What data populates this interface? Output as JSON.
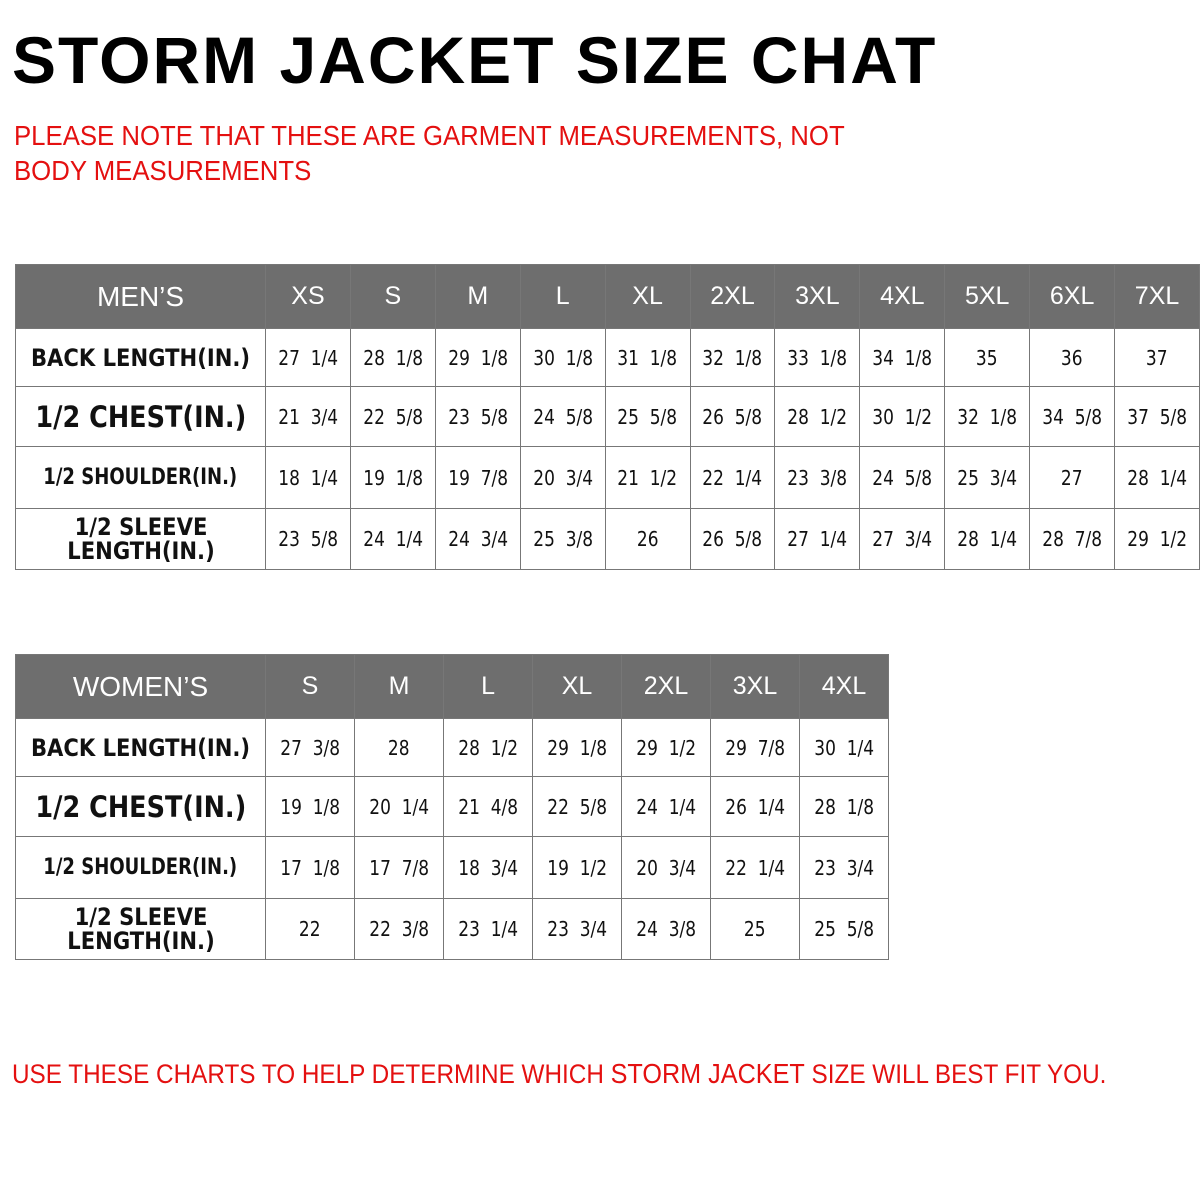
{
  "title": "STORM JACKET SIZE CHAT",
  "note": "PLEASE NOTE THAT THESE ARE GARMENT MEASUREMENTS, NOT BODY MEASUREMENTS",
  "footer": {
    "before": "USE THESE CHARTS TO HELP DETERMINE WHICH ",
    "brand": "STORM JACKET",
    "after": "  SIZE WILL BEST FIT YOU."
  },
  "colors": {
    "header_bg": "#6e6e6e",
    "accent_red": "#e41010"
  },
  "mens": {
    "corner": "MEN’S",
    "sizes": [
      "XS",
      "S",
      "M",
      "L",
      "XL",
      "2XL",
      "3XL",
      "4XL",
      "5XL",
      "6XL",
      "7XL"
    ],
    "rows": [
      {
        "label": "BACK LENGTH(IN.)",
        "values": [
          "27  1/4",
          "28  1/8",
          "29  1/8",
          "30  1/8",
          "31  1/8",
          "32  1/8",
          "33  1/8",
          "34  1/8",
          "35",
          "36",
          "37"
        ]
      },
      {
        "label": "1/2  CHEST(IN.)",
        "values": [
          "21  3/4",
          "22  5/8",
          "23  5/8",
          "24  5/8",
          "25  5/8",
          "26  5/8",
          "28  1/2",
          "30  1/2",
          "32  1/8",
          "34  5/8",
          "37  5/8"
        ]
      },
      {
        "label": "1/2  SHOULDER(IN.)",
        "values": [
          "18  1/4",
          "19  1/8",
          "19  7/8",
          "20  3/4",
          "21  1/2",
          "22  1/4",
          "23  3/8",
          "24  5/8",
          "25  3/4",
          "27",
          "28  1/4"
        ]
      },
      {
        "label": "1/2  SLEEVE LENGTH(IN.)",
        "values": [
          "23  5/8",
          "24  1/4",
          "24  3/4",
          "25  3/8",
          "26",
          "26  5/8",
          "27  1/4",
          "27  3/4",
          "28  1/4",
          "28  7/8",
          "29  1/2"
        ]
      }
    ]
  },
  "womens": {
    "corner": "WOMEN’S",
    "sizes": [
      "S",
      "M",
      "L",
      "XL",
      "2XL",
      "3XL",
      "4XL"
    ],
    "rows": [
      {
        "label": "BACK LENGTH(IN.)",
        "values": [
          "27  3/8",
          "28",
          "28  1/2",
          "29  1/8",
          "29  1/2",
          "29  7/8",
          "30  1/4"
        ]
      },
      {
        "label": "1/2  CHEST(IN.)",
        "values": [
          "19  1/8",
          "20  1/4",
          "21  4/8",
          "22  5/8",
          "24  1/4",
          "26  1/4",
          "28  1/8"
        ]
      },
      {
        "label": "1/2  SHOULDER(IN.)",
        "values": [
          "17  1/8",
          "17  7/8",
          "18  3/4",
          "19  1/2",
          "20  3/4",
          "22  1/4",
          "23  3/4"
        ]
      },
      {
        "label": "1/2  SLEEVE LENGTH(IN.)",
        "values": [
          "22",
          "22  3/8",
          "23  1/4",
          "23  3/4",
          "24  3/8",
          "25",
          "25  5/8"
        ]
      }
    ]
  }
}
